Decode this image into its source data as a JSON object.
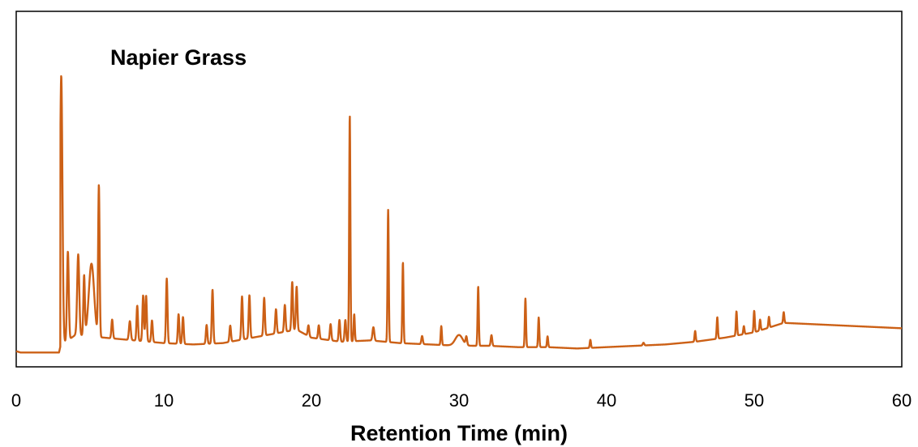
{
  "chart_data": {
    "type": "line",
    "title": "Napier Grass",
    "xlabel": "Retention Time (min)",
    "ylabel": "",
    "xlim": [
      0,
      60
    ],
    "ylim": [
      0,
      1
    ],
    "xticks": [
      "0",
      "10",
      "20",
      "30",
      "40",
      "50",
      "60"
    ],
    "y_axis_labels_shown": false,
    "grid": false,
    "color": "#CC6016",
    "series": [
      {
        "baseline": [
          [
            0,
            0.01
          ],
          [
            0.3,
            0.005
          ],
          [
            2.9,
            0.005
          ],
          [
            3.0,
            0.03
          ],
          [
            4,
            0.07
          ],
          [
            6,
            0.06
          ],
          [
            8,
            0.05
          ],
          [
            10,
            0.04
          ],
          [
            12,
            0.035
          ],
          [
            14,
            0.04
          ],
          [
            16,
            0.06
          ],
          [
            18,
            0.08
          ],
          [
            19,
            0.09
          ],
          [
            20,
            0.06
          ],
          [
            22,
            0.045
          ],
          [
            24,
            0.05
          ],
          [
            26,
            0.04
          ],
          [
            28,
            0.035
          ],
          [
            30,
            0.03
          ],
          [
            32,
            0.03
          ],
          [
            34,
            0.025
          ],
          [
            36,
            0.025
          ],
          [
            38,
            0.02
          ],
          [
            40,
            0.025
          ],
          [
            42,
            0.03
          ],
          [
            44,
            0.035
          ],
          [
            46,
            0.045
          ],
          [
            48,
            0.06
          ],
          [
            50,
            0.08
          ],
          [
            52,
            0.115
          ],
          [
            54,
            0.11
          ],
          [
            56,
            0.105
          ],
          [
            58,
            0.1
          ],
          [
            60,
            0.095
          ]
        ],
        "peaks": [
          [
            3.05,
            1.0,
            0.08
          ],
          [
            3.5,
            0.33,
            0.06
          ],
          [
            4.2,
            0.3,
            0.07
          ],
          [
            4.6,
            0.22,
            0.05
          ],
          [
            5.1,
            0.27,
            0.18
          ],
          [
            5.6,
            0.56,
            0.05
          ],
          [
            6.5,
            0.07,
            0.05
          ],
          [
            7.7,
            0.07,
            0.06
          ],
          [
            8.2,
            0.13,
            0.05
          ],
          [
            8.6,
            0.17,
            0.05
          ],
          [
            8.8,
            0.17,
            0.05
          ],
          [
            9.2,
            0.08,
            0.05
          ],
          [
            10.2,
            0.24,
            0.05
          ],
          [
            11.0,
            0.11,
            0.05
          ],
          [
            11.3,
            0.1,
            0.05
          ],
          [
            12.9,
            0.07,
            0.05
          ],
          [
            13.3,
            0.2,
            0.05
          ],
          [
            14.5,
            0.06,
            0.05
          ],
          [
            15.3,
            0.16,
            0.05
          ],
          [
            15.8,
            0.16,
            0.05
          ],
          [
            16.8,
            0.14,
            0.05
          ],
          [
            17.6,
            0.09,
            0.05
          ],
          [
            18.2,
            0.1,
            0.05
          ],
          [
            18.7,
            0.18,
            0.05
          ],
          [
            19.0,
            0.16,
            0.05
          ],
          [
            19.8,
            0.04,
            0.05
          ],
          [
            20.5,
            0.05,
            0.05
          ],
          [
            21.3,
            0.06,
            0.05
          ],
          [
            21.9,
            0.08,
            0.05
          ],
          [
            22.3,
            0.08,
            0.05
          ],
          [
            22.6,
            0.84,
            0.04
          ],
          [
            22.9,
            0.1,
            0.04
          ],
          [
            24.2,
            0.05,
            0.06
          ],
          [
            25.2,
            0.49,
            0.04
          ],
          [
            26.2,
            0.3,
            0.04
          ],
          [
            27.5,
            0.03,
            0.05
          ],
          [
            28.8,
            0.07,
            0.04
          ],
          [
            30.0,
            0.04,
            0.25
          ],
          [
            30.5,
            0.03,
            0.05
          ],
          [
            31.3,
            0.22,
            0.04
          ],
          [
            32.2,
            0.04,
            0.05
          ],
          [
            34.5,
            0.18,
            0.04
          ],
          [
            35.4,
            0.11,
            0.04
          ],
          [
            36.0,
            0.04,
            0.04
          ],
          [
            38.9,
            0.03,
            0.04
          ],
          [
            42.5,
            0.01,
            0.05
          ],
          [
            46.0,
            0.04,
            0.04
          ],
          [
            47.5,
            0.08,
            0.04
          ],
          [
            48.8,
            0.09,
            0.04
          ],
          [
            49.3,
            0.03,
            0.04
          ],
          [
            50.0,
            0.08,
            0.04
          ],
          [
            50.4,
            0.04,
            0.04
          ],
          [
            51.0,
            0.04,
            0.04
          ],
          [
            52.0,
            0.04,
            0.04
          ]
        ]
      }
    ]
  }
}
